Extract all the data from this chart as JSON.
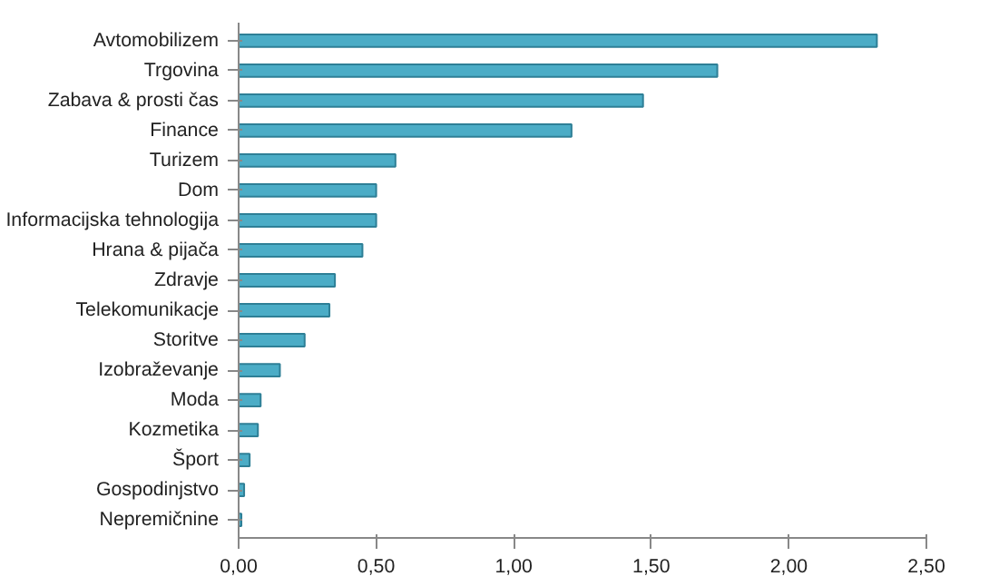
{
  "chart_data": {
    "type": "bar",
    "orientation": "horizontal",
    "categories": [
      "Avtomobilizem",
      "Trgovina",
      "Zabava & prosti čas",
      "Finance",
      "Turizem",
      "Dom",
      "Informacijska tehnologija",
      "Hrana & pijača",
      "Zdravje",
      "Telekomunikacje",
      "Storitve",
      "Izobraževanje",
      "Moda",
      "Kozmetika",
      "Šport",
      "Gospodinjstvo",
      "Nepremičnine"
    ],
    "values": [
      2.32,
      1.74,
      1.47,
      1.21,
      0.57,
      0.5,
      0.5,
      0.45,
      0.35,
      0.33,
      0.24,
      0.15,
      0.08,
      0.07,
      0.04,
      0.02,
      0.01
    ],
    "color": "#4bacc6",
    "xlim": [
      0,
      2.5
    ],
    "xticks": [
      {
        "value": 0,
        "label": "0,00"
      },
      {
        "value": 0.5,
        "label": "0,50"
      },
      {
        "value": 1,
        "label": "1,00"
      },
      {
        "value": 1.5,
        "label": "1,50"
      },
      {
        "value": 2,
        "label": "2,00"
      },
      {
        "value": 2.5,
        "label": "2,50"
      }
    ],
    "grid": false
  }
}
